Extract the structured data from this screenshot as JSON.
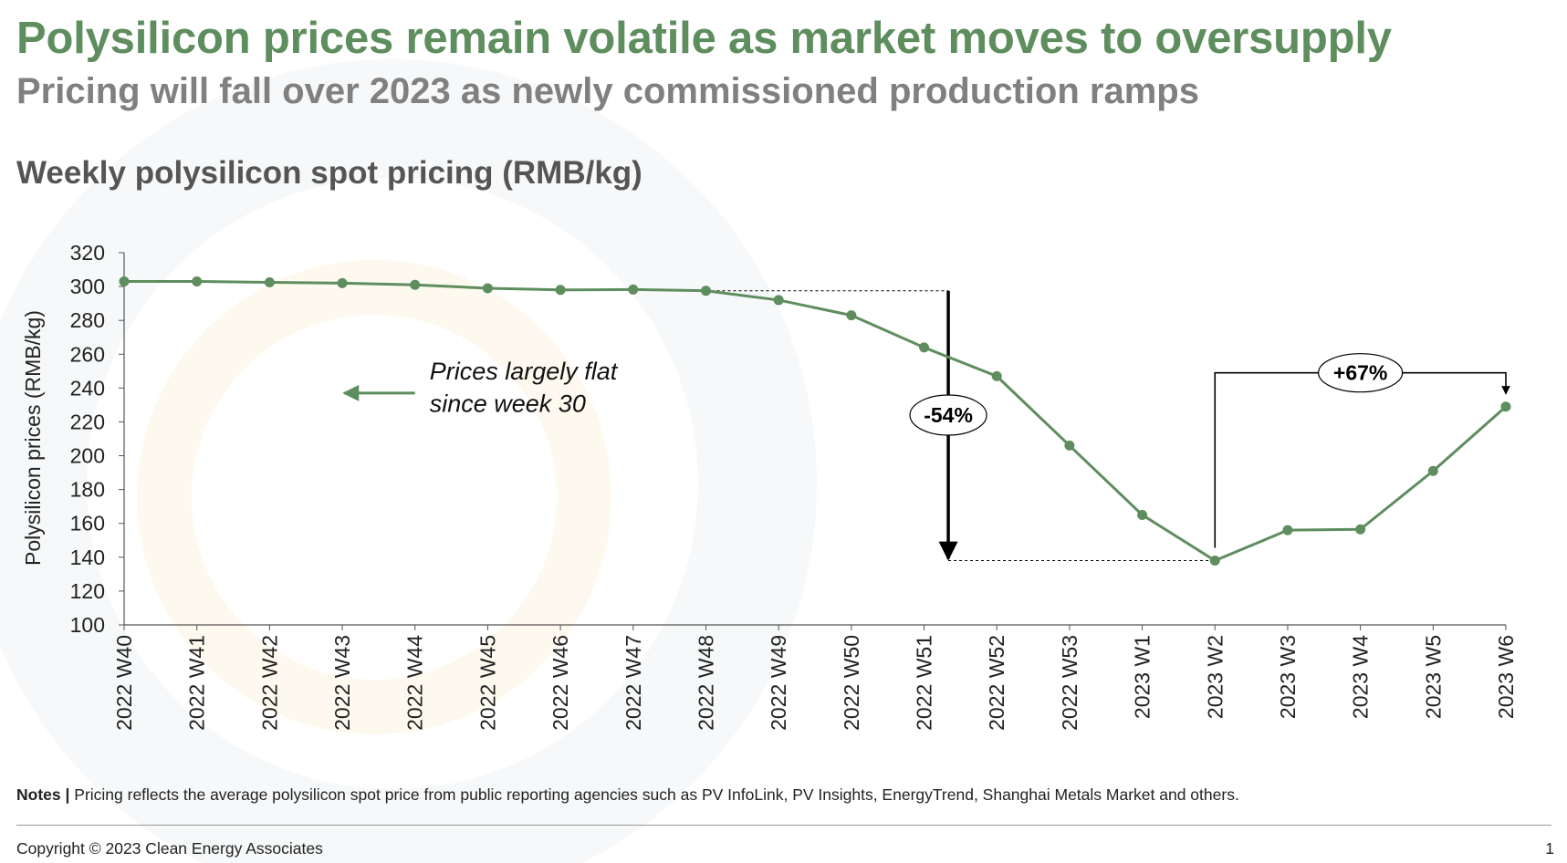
{
  "slide": {
    "title": "Polysilicon prices remain volatile as market moves to oversupply",
    "subtitle": "Pricing will fall over 2023 as newly commissioned production ramps",
    "notes_label": "Notes |",
    "notes_text": "Pricing reflects the average polysilicon spot price from public reporting agencies such as PV InfoLink, PV Insights, EnergyTrend, Shanghai Metals Market and others.",
    "copyright": "Copyright © 2023 Clean Energy Associates",
    "page_number": "1"
  },
  "colors": {
    "title": "#5e8d5e",
    "line": "#5e8d5e",
    "annotation": "#000000"
  },
  "chart_data": {
    "type": "line",
    "title": "Weekly polysilicon spot pricing (RMB/kg)",
    "xlabel": "",
    "ylabel": "Polysilicon prices (RMB/kg)",
    "ylim": [
      100,
      320
    ],
    "yticks": [
      100,
      120,
      140,
      160,
      180,
      200,
      220,
      240,
      260,
      280,
      300,
      320
    ],
    "grid": false,
    "categories": [
      "2022 W40",
      "2022 W41",
      "2022 W42",
      "2022 W43",
      "2022 W44",
      "2022 W45",
      "2022 W46",
      "2022 W47",
      "2022 W48",
      "2022 W49",
      "2022 W50",
      "2022 W51",
      "2022 W52",
      "2022 W53",
      "2023 W1",
      "2023 W2",
      "2023 W3",
      "2023 W4",
      "2023 W5",
      "2023 W6"
    ],
    "series": [
      {
        "name": "Polysilicon spot price",
        "values": [
          303,
          303,
          302.5,
          302,
          301,
          299,
          298,
          298.2,
          297.5,
          292,
          283,
          264,
          247,
          206,
          165,
          138,
          156,
          156.5,
          191,
          229
        ]
      }
    ],
    "annotations": {
      "flat_text_line1": "Prices largely flat",
      "flat_text_line2": "since week 30",
      "decline_label": "-54%",
      "decline_from_category": "2022 W48",
      "decline_to_category": "2023 W2",
      "increase_label": "+67%",
      "increase_from_category": "2023 W2",
      "increase_to_category": "2023 W6"
    }
  }
}
